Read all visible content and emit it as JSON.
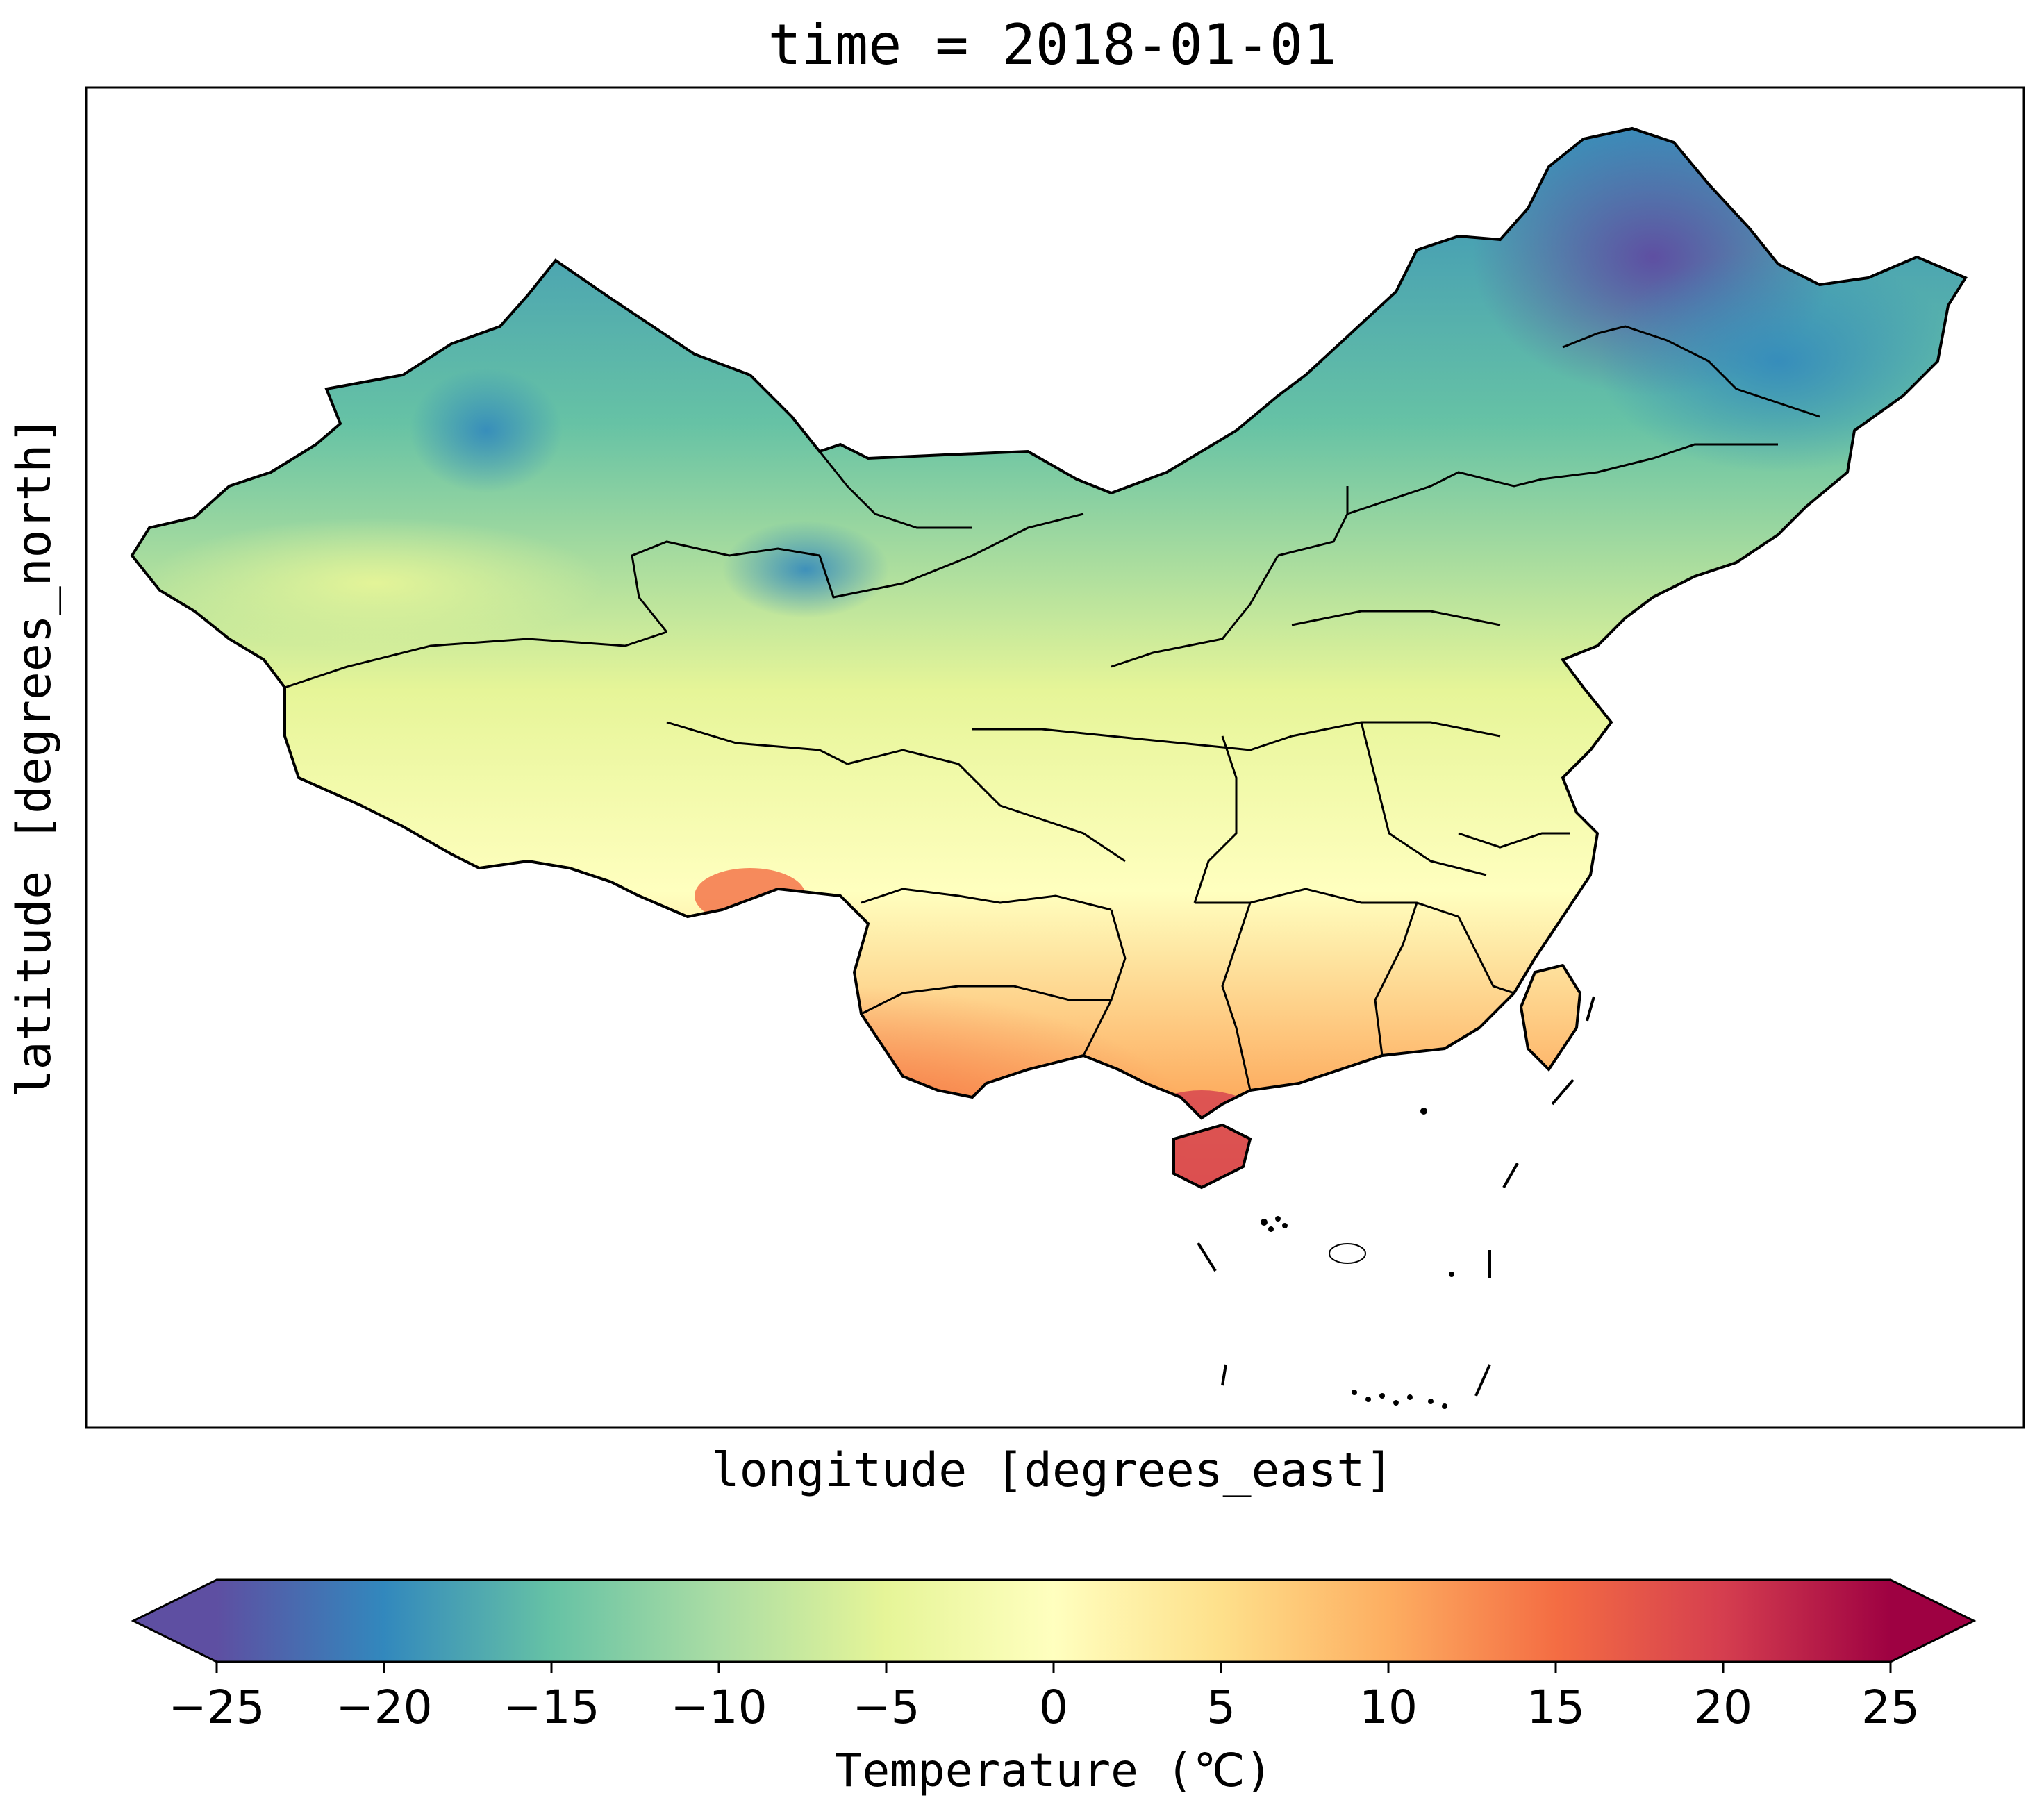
{
  "figure": {
    "title": "time = 2018-01-01",
    "xlabel": "longitude [degrees_east]",
    "ylabel": "latitude [degrees_north]"
  },
  "colorbar": {
    "label": "Temperature (℃)",
    "min": -25,
    "max": 25,
    "step": 1,
    "extend": "both",
    "colormap": "Spectral_r",
    "ticks": [
      {
        "value": -25,
        "label": "−25"
      },
      {
        "value": -20,
        "label": "−20"
      },
      {
        "value": -15,
        "label": "−15"
      },
      {
        "value": -10,
        "label": "−10"
      },
      {
        "value": -5,
        "label": "−5"
      },
      {
        "value": 0,
        "label": "0"
      },
      {
        "value": 5,
        "label": "5"
      },
      {
        "value": 10,
        "label": "10"
      },
      {
        "value": 15,
        "label": "15"
      },
      {
        "value": 20,
        "label": "20"
      },
      {
        "value": 25,
        "label": "25"
      }
    ],
    "color_stops": [
      "#5e4fa2",
      "#3288bd",
      "#66c2a5",
      "#abdda4",
      "#e6f598",
      "#ffffbf",
      "#fee08b",
      "#fdae61",
      "#f46d43",
      "#d53e4f",
      "#9e0142"
    ]
  },
  "map": {
    "region": "China",
    "boundary_color": "#000000"
  }
}
